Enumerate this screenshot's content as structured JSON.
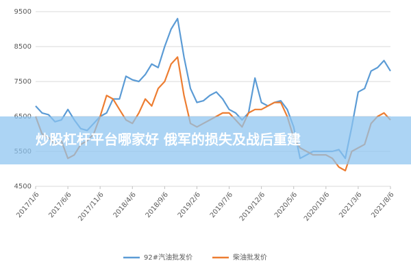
{
  "chart_data": {
    "type": "line",
    "annotation": "炒股杠杆平台哪家好 俄军的损失及战后重建",
    "categories": [
      "2017/1/6",
      null,
      null,
      null,
      null,
      "2017/6/6",
      null,
      null,
      null,
      null,
      "2017/11/6",
      null,
      null,
      null,
      null,
      "2018/4/6",
      null,
      null,
      null,
      null,
      "2018/9/6",
      null,
      null,
      null,
      null,
      "2019/2/6",
      null,
      null,
      null,
      null,
      "2019/7/6",
      null,
      null,
      null,
      null,
      "2019/12/6",
      null,
      null,
      null,
      null,
      "2020/5/6",
      null,
      null,
      null,
      null,
      "2020/10/6",
      null,
      null,
      null,
      null,
      "2021/3/6",
      null,
      null,
      null,
      null,
      "2021/8/6"
    ],
    "series": [
      {
        "name": "92#汽油批发价",
        "color": "#5b9bd5",
        "values": [
          6800,
          6600,
          6550,
          6350,
          6400,
          6700,
          6400,
          6150,
          6100,
          6300,
          6500,
          6600,
          7000,
          7000,
          7650,
          7550,
          7500,
          7700,
          8000,
          7900,
          8500,
          9000,
          9300,
          8200,
          7300,
          6900,
          6950,
          7100,
          7200,
          7000,
          6700,
          6600,
          6400,
          6600,
          7600,
          6900,
          6800,
          6900,
          6950,
          6700,
          6200,
          5300,
          5400,
          5500,
          5500,
          5500,
          5500,
          5550,
          5300,
          6200,
          7200,
          7300,
          7800,
          7900,
          8100,
          7800
        ]
      },
      {
        "name": "柴油批发价",
        "color": "#ed7d31",
        "values": [
          6500,
          6000,
          5900,
          5700,
          5800,
          5300,
          5400,
          5700,
          5800,
          6000,
          6500,
          7100,
          7000,
          6700,
          6400,
          6300,
          6600,
          7000,
          6800,
          7300,
          7500,
          8000,
          8200,
          7100,
          6300,
          6200,
          6300,
          6400,
          6500,
          6600,
          6600,
          6400,
          6200,
          6600,
          6700,
          6700,
          6800,
          6900,
          6900,
          6500,
          5900,
          5600,
          5500,
          5400,
          5400,
          5400,
          5300,
          5050,
          4950,
          5500,
          5600,
          5700,
          6300,
          6500,
          6600,
          6400
        ]
      }
    ],
    "ylim": [
      4500,
      9500
    ],
    "yticks": [
      4500,
      5500,
      6500,
      7500,
      8500,
      9500
    ],
    "grid": true,
    "legend": "bottom"
  }
}
